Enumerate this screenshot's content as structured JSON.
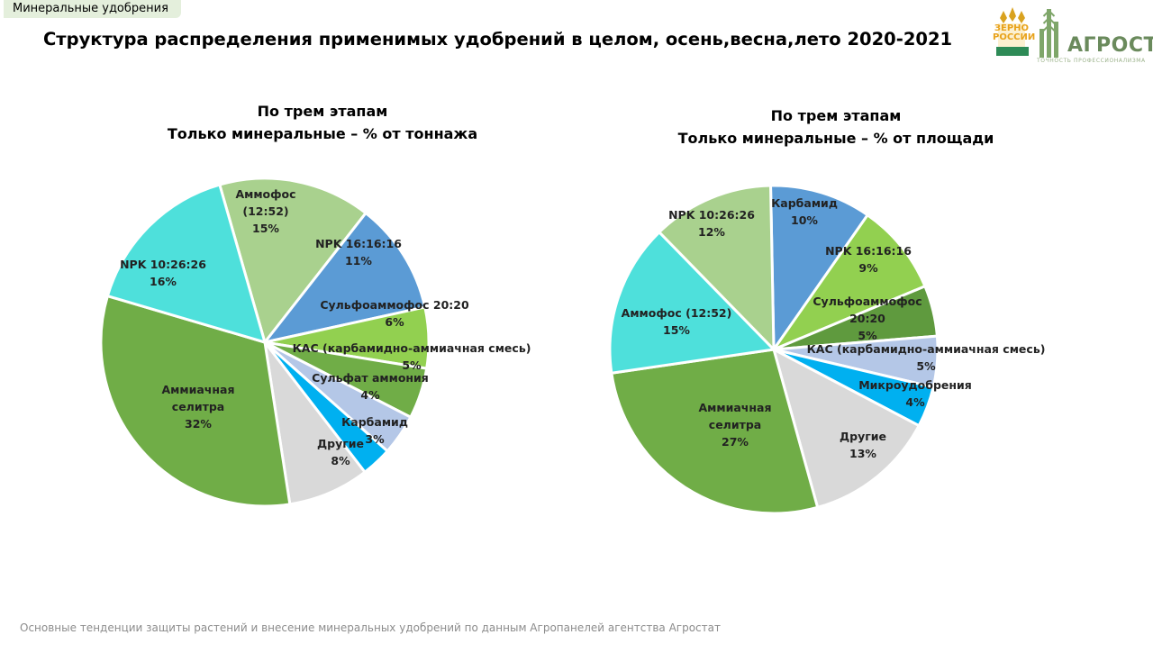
{
  "header": {
    "tag": "Минеральные удобрения",
    "title": "Структура распределения применимых удобрений в целом, осень,весна,лето 2020-2021"
  },
  "logo": {
    "zerno": "ЗЕРНО",
    "rossii": "РОССИИ",
    "name": "АГРОСТАТ",
    "tagline": "ТОЧНОСТЬ ПРОФЕССИОНАЛИЗМА"
  },
  "footer": "Основные тенденции защиты растений и внесение минеральных удобрений по данным Агропанелей агентства Агростат",
  "chart_data": [
    {
      "type": "pie",
      "title_line1": "По трем этапам",
      "title_line2": "Только минеральные – % от тоннажа",
      "slices": [
        {
          "label": "Аммофос (12:52)",
          "value": 15,
          "color": "#a9d18e"
        },
        {
          "label": "NPK 16:16:16",
          "value": 11,
          "color": "#5b9bd5"
        },
        {
          "label": "Сульфоаммофос 20:20",
          "value": 6,
          "color": "#92d050"
        },
        {
          "label": "КАС (карбамидно-аммиачная смесь)",
          "value": 5,
          "color": "#70ad47"
        },
        {
          "label": "Сульфат аммония",
          "value": 4,
          "color": "#b4c7e7"
        },
        {
          "label": "Карбамид",
          "value": 3,
          "color": "#00b0f0"
        },
        {
          "label": "Другие",
          "value": 8,
          "color": "#d9d9d9"
        },
        {
          "label": "Аммиачная селитра",
          "value": 32,
          "color": "#70ad47"
        },
        {
          "label": "NPK 10:26:26",
          "value": 16,
          "color": "#4ee0db"
        }
      ]
    },
    {
      "type": "pie",
      "title_line1": "По трем этапам",
      "title_line2": "Только минеральные – % от площади",
      "slices": [
        {
          "label": "Карбамид",
          "value": 10,
          "color": "#5b9bd5"
        },
        {
          "label": "NPK 16:16:16",
          "value": 9,
          "color": "#92d050"
        },
        {
          "label": "Сульфоаммофос 20:20",
          "value": 5,
          "color": "#5f9a3e"
        },
        {
          "label": "КАС (карбамидно-аммиачная смесь)",
          "value": 5,
          "color": "#b4c7e7"
        },
        {
          "label": "Микроудобрения",
          "value": 4,
          "color": "#00b0f0"
        },
        {
          "label": "Другие",
          "value": 13,
          "color": "#d9d9d9"
        },
        {
          "label": "Аммиачная селитра",
          "value": 27,
          "color": "#70ad47"
        },
        {
          "label": "Аммофос (12:52)",
          "value": 15,
          "color": "#4ee0db"
        },
        {
          "label": "NPK 10:26:26",
          "value": 12,
          "color": "#a9d18e"
        }
      ]
    }
  ]
}
